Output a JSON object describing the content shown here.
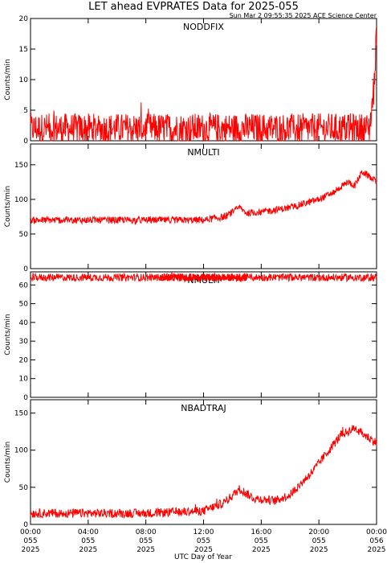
{
  "figure": {
    "title": "LET ahead EVPRATES Data for 2025-055",
    "timestamp": "Sun Mar  2 09:55:35 2025 ACE Science Center",
    "xlabel": "UTC Day of Year",
    "series_color": "#ff0000",
    "panel_label_color": "#0000ff"
  },
  "chart_data": [
    {
      "type": "line",
      "title": "NODDFIX",
      "ylabel": "Counts/min",
      "ylim": [
        0,
        20
      ],
      "yticks": [
        0,
        5,
        10,
        15,
        20
      ],
      "xlim_hours": [
        0,
        24
      ],
      "xticks": [
        {
          "hours": 0,
          "lines": [
            "00:00",
            "055",
            "2025"
          ]
        },
        {
          "hours": 4,
          "lines": [
            "04:00",
            "055",
            "2025"
          ]
        },
        {
          "hours": 8,
          "lines": [
            "08:00",
            "055",
            "2025"
          ]
        },
        {
          "hours": 12,
          "lines": [
            "12:00",
            "055",
            "2025"
          ]
        },
        {
          "hours": 16,
          "lines": [
            "16:00",
            "055",
            "2025"
          ]
        },
        {
          "hours": 20,
          "lines": [
            "20:00",
            "055",
            "2025"
          ]
        },
        {
          "hours": 24,
          "lines": [
            "00:00",
            "056",
            "2025"
          ]
        }
      ],
      "series": [
        {
          "x_hours": [
            0,
            4,
            8,
            12,
            16,
            20,
            23.5,
            23.8,
            24
          ],
          "values": [
            2,
            2,
            2,
            2,
            2,
            2,
            2,
            8,
            18
          ],
          "noise": 2.5
        }
      ]
    },
    {
      "type": "line",
      "title": "NMULTI",
      "ylabel": "Counts/min",
      "ylim": [
        0,
        180
      ],
      "yticks": [
        0,
        50,
        100,
        150
      ],
      "xlim_hours": [
        0,
        24
      ],
      "series": [
        {
          "x_hours": [
            0,
            4,
            8,
            12,
            13.5,
            14.5,
            15,
            16,
            18,
            20,
            21,
            22,
            22.5,
            23,
            24
          ],
          "values": [
            70,
            70,
            70,
            70,
            75,
            88,
            80,
            82,
            88,
            100,
            110,
            125,
            120,
            140,
            125
          ],
          "noise": 5
        }
      ]
    },
    {
      "type": "line",
      "title": "NMULTI",
      "title_note": "label partially hidden behind the trace",
      "ylabel": "Counts/min",
      "ylim": [
        0,
        67
      ],
      "yticks": [
        0,
        10,
        20,
        30,
        40,
        50,
        60
      ],
      "xlim_hours": [
        0,
        24
      ],
      "series": [
        {
          "x_hours": [
            0,
            24
          ],
          "values": [
            64,
            64
          ],
          "noise": 2
        }
      ]
    },
    {
      "type": "line",
      "title": "NBADTRAJ",
      "ylabel": "Counts/min",
      "ylim": [
        0,
        168
      ],
      "yticks": [
        0,
        50,
        100,
        150
      ],
      "xlim_hours": [
        0,
        24
      ],
      "series": [
        {
          "x_hours": [
            0,
            4,
            8,
            12,
            13.5,
            14.5,
            15.5,
            17,
            18,
            19.5,
            20.5,
            21.5,
            22.5,
            23.2,
            24
          ],
          "values": [
            15,
            15,
            15,
            18,
            30,
            48,
            35,
            32,
            40,
            70,
            95,
            120,
            130,
            120,
            110
          ],
          "noise": 6
        }
      ]
    }
  ]
}
